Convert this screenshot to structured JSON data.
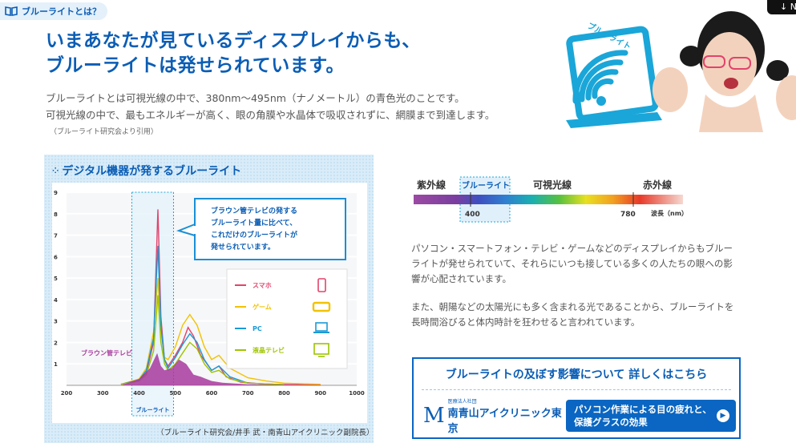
{
  "tag": {
    "label": "ブルーライトとは？",
    "icon": "book-icon"
  },
  "top_button": {
    "label": "↓ N"
  },
  "headline": {
    "line1": "いまあなたが見ているディスプレイからも、",
    "line2": "ブルーライトは発せられています。"
  },
  "intro": {
    "line1": "ブルーライトとは可視光線の中で、380nm〜495nm（ナノメートル）の青色光のことです。",
    "line2": "可視光線の中で、最もエネルギーが高く、眼の角膜や水晶体で吸収されずに、網膜まで到達します。",
    "cite": "（ブルーライト研究会より引用）"
  },
  "hero": {
    "label": "ブルーライト"
  },
  "chart_panel": {
    "title": "デジタル機器が発するブルーライト",
    "callout": [
      "ブラウン管テレビの発する",
      "ブルーライト量に比べて、",
      "これだけのブルーライトが",
      "発せられています。"
    ],
    "band_label": "ブルーライト",
    "crt_label": "ブラウン管テレビ",
    "cite": "（ブルーライト研究会/井手 武・南青山アイクリニック副院長）"
  },
  "chart_data": {
    "type": "line",
    "x_ticks": [
      200,
      300,
      400,
      500,
      600,
      700,
      800,
      900,
      1000
    ],
    "y_ticks": [
      1,
      2,
      3,
      4,
      5,
      6,
      7,
      8,
      9
    ],
    "xlim": [
      200,
      1000
    ],
    "ylim": [
      0,
      9
    ],
    "band": [
      380,
      495
    ],
    "series": [
      {
        "name": "スマホ",
        "color": "#e2436b",
        "icon": "smartphone-icon",
        "points": [
          [
            350,
            0.05
          ],
          [
            400,
            0.2
          ],
          [
            420,
            0.6
          ],
          [
            440,
            2.0
          ],
          [
            452,
            8.2
          ],
          [
            460,
            3.2
          ],
          [
            470,
            1.2
          ],
          [
            480,
            0.9
          ],
          [
            500,
            1.4
          ],
          [
            520,
            2.0
          ],
          [
            535,
            2.7
          ],
          [
            550,
            2.3
          ],
          [
            570,
            1.4
          ],
          [
            600,
            0.7
          ],
          [
            620,
            0.9
          ],
          [
            640,
            0.4
          ],
          [
            680,
            0.15
          ],
          [
            750,
            0.05
          ],
          [
            900,
            0.02
          ]
        ]
      },
      {
        "name": "ゲーム",
        "color": "#f2c200",
        "icon": "game-icon",
        "points": [
          [
            350,
            0.05
          ],
          [
            400,
            0.3
          ],
          [
            420,
            0.8
          ],
          [
            440,
            2.5
          ],
          [
            452,
            5.0
          ],
          [
            460,
            2.5
          ],
          [
            470,
            1.3
          ],
          [
            480,
            1.2
          ],
          [
            500,
            1.8
          ],
          [
            520,
            2.8
          ],
          [
            540,
            3.3
          ],
          [
            560,
            2.8
          ],
          [
            580,
            1.8
          ],
          [
            600,
            1.2
          ],
          [
            620,
            1.4
          ],
          [
            650,
            0.8
          ],
          [
            700,
            0.35
          ],
          [
            750,
            0.2
          ],
          [
            800,
            0.1
          ],
          [
            900,
            0.05
          ]
        ]
      },
      {
        "name": "PC",
        "color": "#1a9ad6",
        "icon": "laptop-icon",
        "points": [
          [
            350,
            0.05
          ],
          [
            400,
            0.25
          ],
          [
            420,
            0.7
          ],
          [
            440,
            2.2
          ],
          [
            452,
            6.5
          ],
          [
            460,
            2.8
          ],
          [
            470,
            1.2
          ],
          [
            480,
            0.8
          ],
          [
            500,
            1.3
          ],
          [
            520,
            1.9
          ],
          [
            540,
            2.4
          ],
          [
            560,
            2.0
          ],
          [
            580,
            1.2
          ],
          [
            600,
            0.7
          ],
          [
            620,
            0.9
          ],
          [
            650,
            0.4
          ],
          [
            700,
            0.1
          ],
          [
            800,
            0.03
          ]
        ]
      },
      {
        "name": "液晶テレビ",
        "color": "#9dc400",
        "icon": "tv-icon",
        "points": [
          [
            350,
            0.05
          ],
          [
            400,
            0.2
          ],
          [
            420,
            0.5
          ],
          [
            440,
            1.6
          ],
          [
            452,
            4.2
          ],
          [
            460,
            2.0
          ],
          [
            470,
            1.0
          ],
          [
            480,
            0.7
          ],
          [
            500,
            1.0
          ],
          [
            520,
            1.5
          ],
          [
            540,
            2.0
          ],
          [
            560,
            1.7
          ],
          [
            580,
            1.0
          ],
          [
            600,
            0.6
          ],
          [
            620,
            0.7
          ],
          [
            650,
            0.3
          ],
          [
            700,
            0.1
          ],
          [
            800,
            0.03
          ]
        ]
      },
      {
        "name": "ブラウン管テレビ",
        "color": "#a83a9e",
        "points": [
          [
            350,
            0.0
          ],
          [
            400,
            0.3
          ],
          [
            430,
            0.8
          ],
          [
            450,
            1.5
          ],
          [
            460,
            0.9
          ],
          [
            470,
            0.7
          ],
          [
            490,
            0.8
          ],
          [
            510,
            1.2
          ],
          [
            530,
            1.0
          ],
          [
            550,
            0.5
          ],
          [
            570,
            0.4
          ],
          [
            600,
            0.2
          ],
          [
            630,
            0.12
          ],
          [
            700,
            0.05
          ],
          [
            800,
            0.02
          ],
          [
            900,
            0.01
          ]
        ]
      }
    ]
  },
  "spectrum": {
    "uv": "紫外線",
    "blue": "ブルーライト",
    "visible": "可視光線",
    "ir": "赤外線",
    "tick400": "400",
    "tick780": "780",
    "unit": "波長（nm）"
  },
  "paragraphs": {
    "p1": [
      "パソコン・スマートフォン・テレビ・ゲームなどのディスプレイからもブルー",
      "ライトが発せられていて、それらにいつも接している多くの人たちの眼への影",
      "響が心配されています。"
    ],
    "p2": [
      "また、朝陽などの太陽光にも多く含まれる光であることから、ブルーライトを",
      "長時間浴びると体内時計を狂わせると言われています。"
    ]
  },
  "info_box": {
    "heading": "ブルーライトの及ぼす影響について 詳しくはこちら",
    "clinic_small": "医療法人社団",
    "clinic_letter": "M",
    "clinic_name": "南青山アイクリニック東京",
    "button_line1": "パソコン作業による目の疲れと、",
    "button_line2": "保護グラスの効果",
    "button_arrow": "▶"
  }
}
